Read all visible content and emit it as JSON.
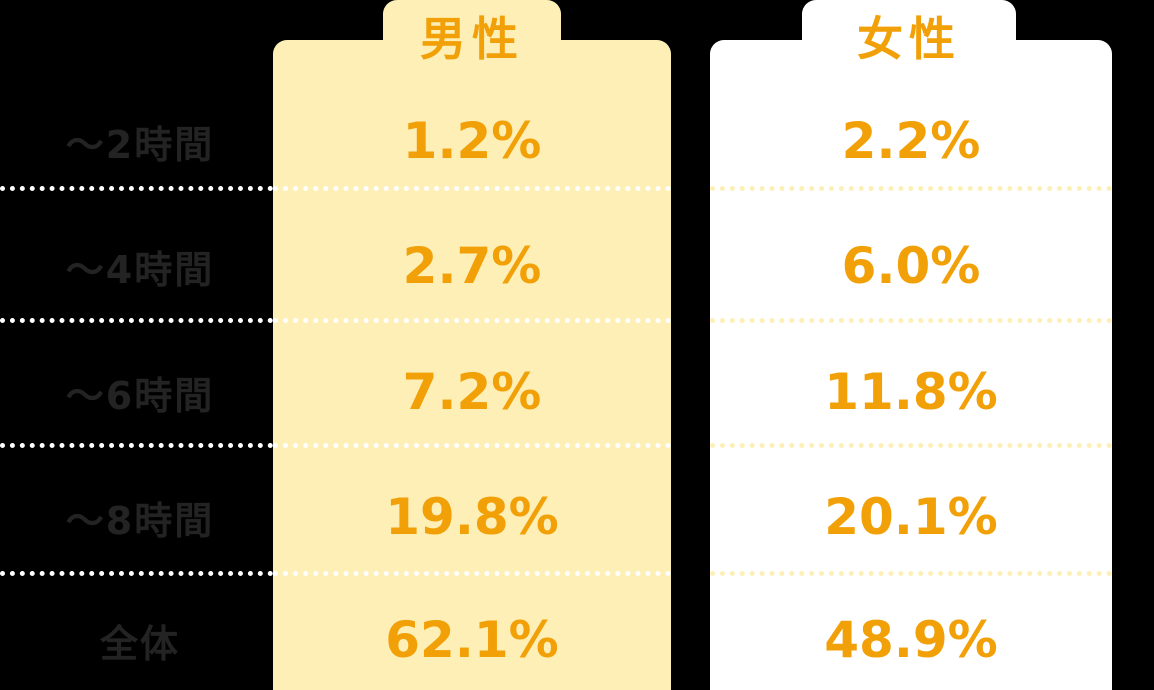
{
  "chart_data": {
    "type": "table",
    "columns": [
      "男性",
      "女性"
    ],
    "rows": [
      {
        "label": "〜2時間",
        "male": "1.2%",
        "female": "2.2%"
      },
      {
        "label": "〜4時間",
        "male": "2.7%",
        "female": "6.0%"
      },
      {
        "label": "〜6時間",
        "male": "7.2%",
        "female": "11.8%"
      },
      {
        "label": "〜8時間",
        "male": "19.8%",
        "female": "20.1%"
      },
      {
        "label": "全体",
        "male": "62.1%",
        "female": "48.9%"
      }
    ],
    "values_male": [
      1.2,
      2.7,
      7.2,
      19.8,
      62.1
    ],
    "values_female": [
      2.2,
      6.0,
      11.8,
      20.1,
      48.9
    ]
  },
  "colors": {
    "accent": "#f2a007",
    "male_column_bg": "#fdefb6",
    "female_column_bg": "#ffffff",
    "label_text": "#232323",
    "background": "#000000"
  }
}
